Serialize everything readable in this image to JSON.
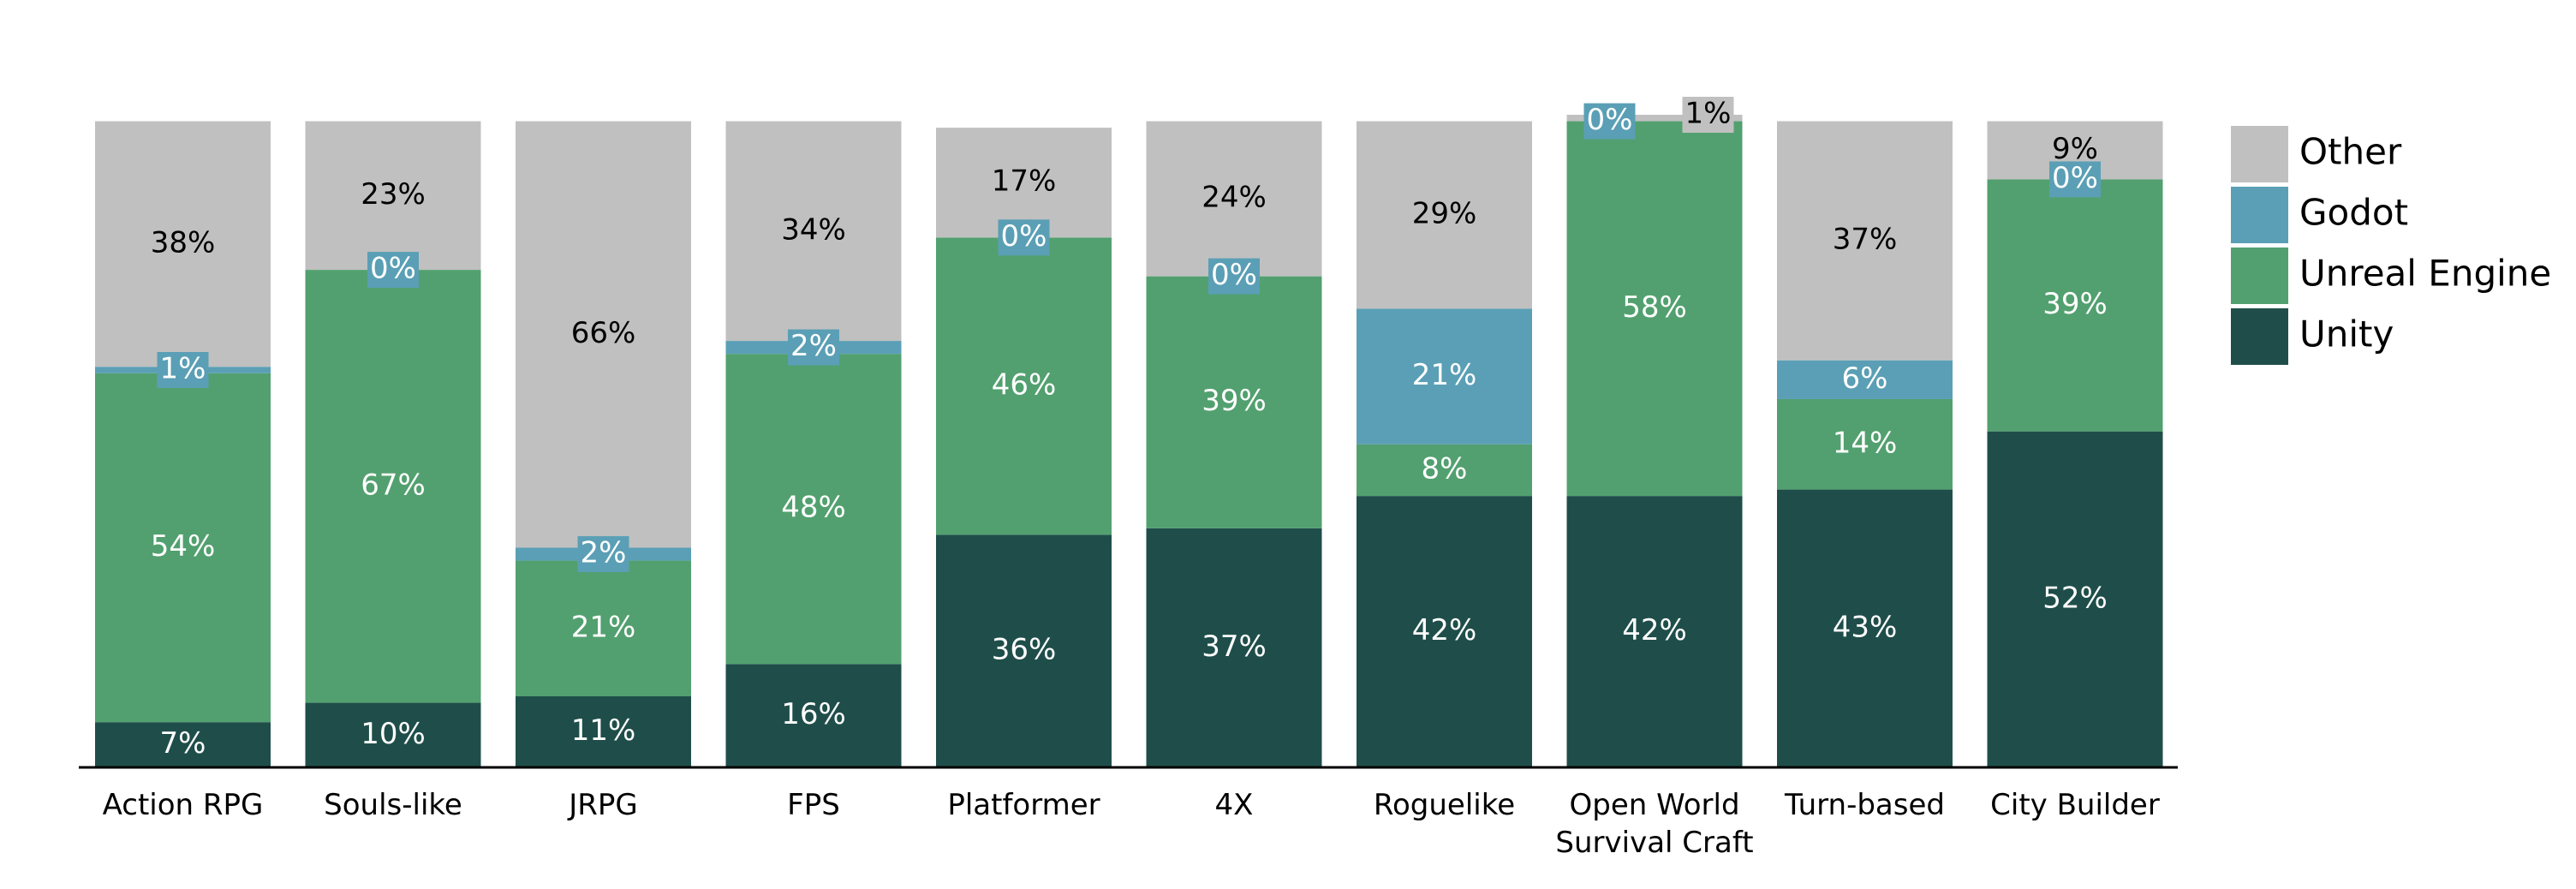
{
  "chart_data": {
    "type": "stacked-bar",
    "categories": [
      "Action RPG",
      "Souls-like",
      "JRPG",
      "FPS",
      "Platformer",
      "4X",
      "Roguelike",
      "Open World Survival Craft",
      "Turn-based",
      "City Builder"
    ],
    "series": [
      {
        "name": "Unity",
        "color": "#1f4e4a",
        "values": [
          7,
          10,
          11,
          16,
          36,
          37,
          42,
          42,
          43,
          52
        ],
        "value_labels": [
          "7%",
          "10%",
          "11%",
          "16%",
          "36%",
          "37%",
          "42%",
          "42%",
          "43%",
          "52%"
        ]
      },
      {
        "name": "Unreal Engine",
        "color": "#52a06f",
        "values": [
          54,
          67,
          21,
          48,
          46,
          39,
          8,
          58,
          14,
          39
        ],
        "value_labels": [
          "54%",
          "67%",
          "21%",
          "48%",
          "46%",
          "39%",
          "8%",
          "58%",
          "14%",
          "39%"
        ]
      },
      {
        "name": "Godot",
        "color": "#5a9fb5",
        "values": [
          1,
          0,
          2,
          2,
          0,
          0,
          21,
          0,
          6,
          0
        ],
        "value_labels": [
          "1%",
          "0%",
          "2%",
          "2%",
          "0%",
          "0%",
          "21%",
          "0%",
          "6%",
          "0%"
        ]
      },
      {
        "name": "Other",
        "color": "#c0c0c0",
        "values": [
          38,
          23,
          66,
          34,
          17,
          24,
          29,
          1,
          37,
          9
        ],
        "value_labels": [
          "38%",
          "23%",
          "66%",
          "34%",
          "17%",
          "24%",
          "29%",
          "1%",
          "37%",
          "9%"
        ]
      }
    ]
  }
}
